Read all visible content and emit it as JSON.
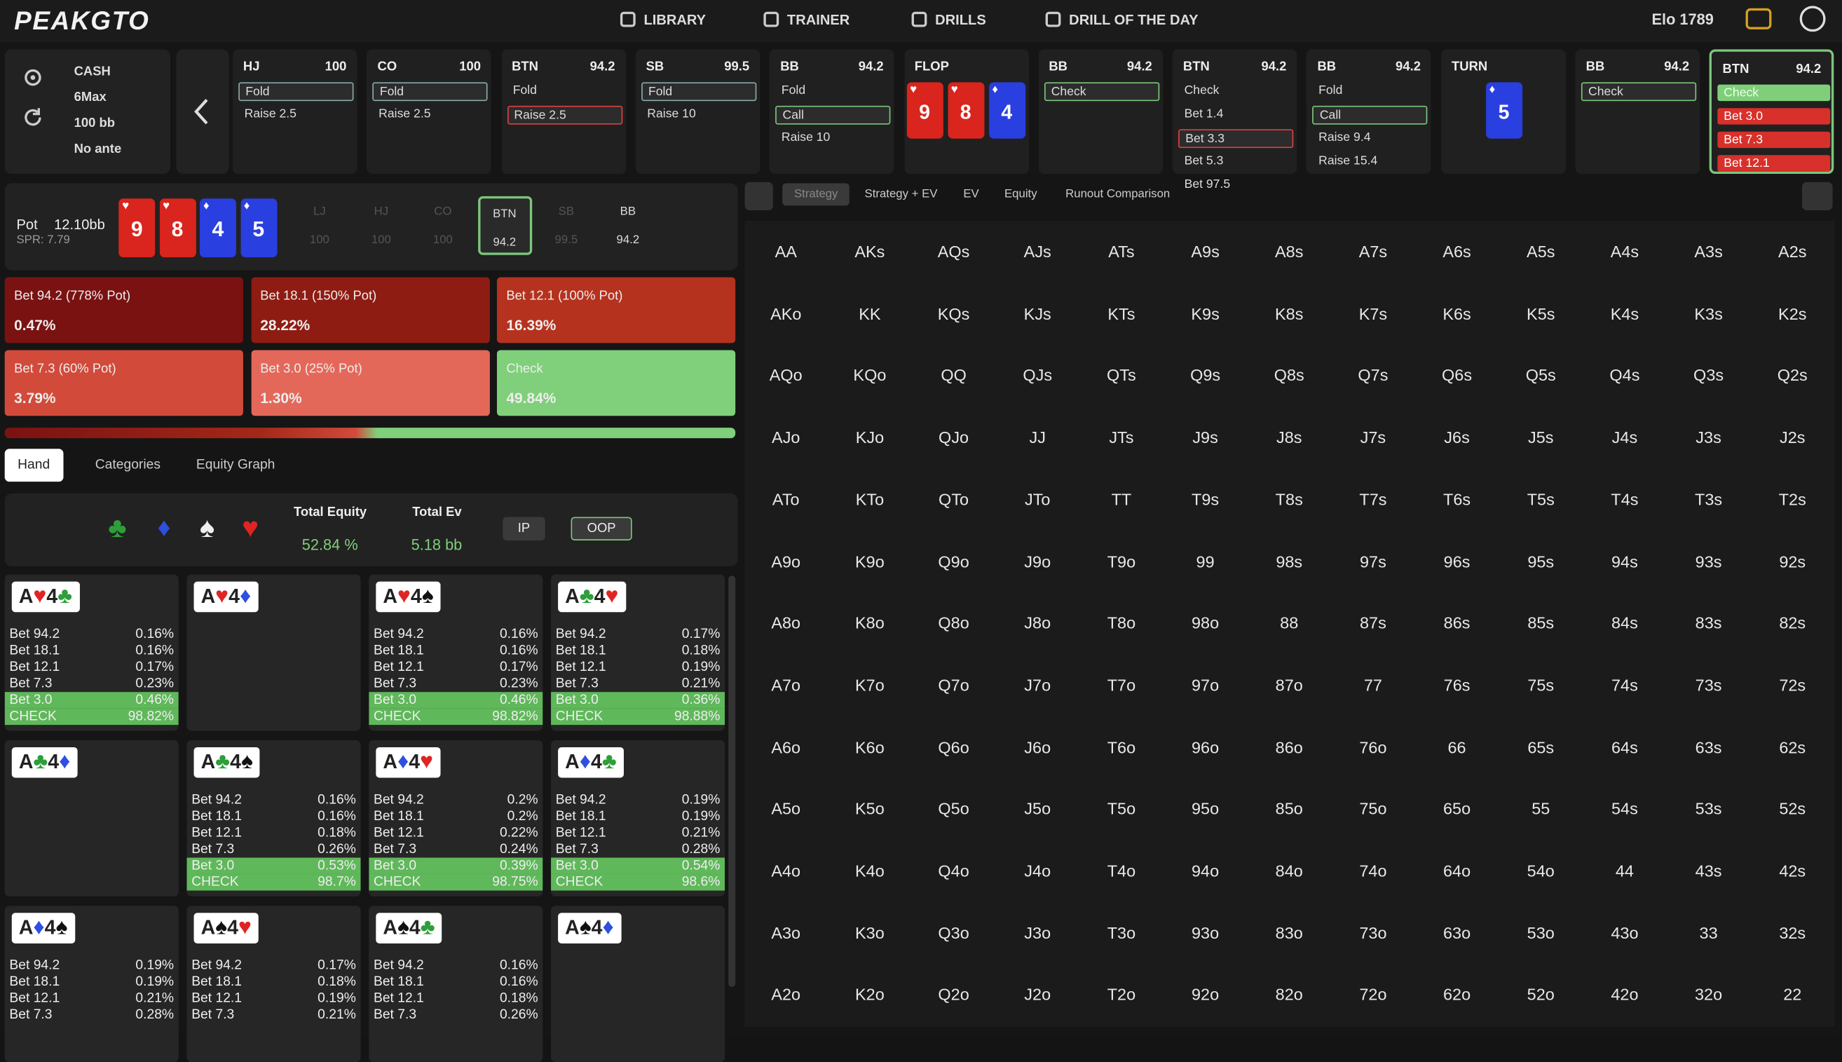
{
  "nav": {
    "logo": "PEAKGTO",
    "items": [
      "LIBRARY",
      "TRAINER",
      "DRILLS",
      "DRILL OF THE DAY"
    ],
    "elo": "Elo 1789"
  },
  "game": [
    "CASH",
    "6Max",
    "100 bb",
    "No ante"
  ],
  "columns": [
    {
      "player": "HJ",
      "stack": "100",
      "actions": [
        {
          "label": "Fold",
          "state": "box"
        },
        {
          "label": "Raise 2.5",
          "state": ""
        }
      ]
    },
    {
      "player": "CO",
      "stack": "100",
      "actions": [
        {
          "label": "Fold",
          "state": "box"
        },
        {
          "label": "Raise 2.5",
          "state": ""
        }
      ]
    },
    {
      "player": "BTN",
      "stack": "94.2",
      "actions": [
        {
          "label": "Fold",
          "state": ""
        },
        {
          "label": "Raise 2.5",
          "state": "box-red"
        }
      ]
    },
    {
      "player": "SB",
      "stack": "99.5",
      "actions": [
        {
          "label": "Fold",
          "state": "box"
        },
        {
          "label": "Raise 10",
          "state": ""
        }
      ]
    },
    {
      "player": "BB",
      "stack": "94.2",
      "actions": [
        {
          "label": "Fold",
          "state": ""
        },
        {
          "label": "Call",
          "state": "box-green"
        },
        {
          "label": "Raise 10",
          "state": ""
        }
      ]
    },
    {
      "player": "FLOP",
      "cards": [
        {
          "rank": "9",
          "suit": "♥",
          "color": "#d9251d"
        },
        {
          "rank": "8",
          "suit": "♥",
          "color": "#d9251d"
        },
        {
          "rank": "4",
          "suit": "♦",
          "color": "#2a3fe0"
        }
      ]
    },
    {
      "player": "BB",
      "stack": "94.2",
      "actions": [
        {
          "label": "Check",
          "state": "box-green"
        }
      ]
    },
    {
      "player": "BTN",
      "stack": "94.2",
      "actions": [
        {
          "label": "Check",
          "state": ""
        },
        {
          "label": "Bet 1.4",
          "state": ""
        },
        {
          "label": "Bet 3.3",
          "state": "box-red"
        },
        {
          "label": "Bet 5.3",
          "state": ""
        },
        {
          "label": "Bet 97.5",
          "state": ""
        }
      ]
    },
    {
      "player": "BB",
      "stack": "94.2",
      "actions": [
        {
          "label": "Fold",
          "state": ""
        },
        {
          "label": "Call",
          "state": "box-green"
        },
        {
          "label": "Raise 9.4",
          "state": ""
        },
        {
          "label": "Raise 15.4",
          "state": ""
        }
      ]
    },
    {
      "player": "TURN",
      "cards": [
        {
          "rank": "5",
          "suit": "♦",
          "color": "#2a3fe0"
        }
      ]
    },
    {
      "player": "BB",
      "stack": "94.2",
      "actions": [
        {
          "label": "Check",
          "state": "box-green"
        }
      ]
    },
    {
      "player": "BTN",
      "stack": "94.2",
      "active": true,
      "actions": [
        {
          "label": "Check",
          "state": "fill-green"
        },
        {
          "label": "Bet 3.0",
          "state": "fill-red"
        },
        {
          "label": "Bet 7.3",
          "state": "fill-red"
        },
        {
          "label": "Bet 12.1",
          "state": "fill-red"
        }
      ]
    }
  ],
  "pot": {
    "label": "Pot",
    "value": "12.10bb",
    "spr": "SPR: 7.79",
    "board": [
      {
        "rank": "9",
        "suit": "♥",
        "color": "#d9251d"
      },
      {
        "rank": "8",
        "suit": "♥",
        "color": "#d9251d"
      },
      {
        "rank": "4",
        "suit": "♦",
        "color": "#2a3fe0"
      },
      {
        "rank": "5",
        "suit": "♦",
        "color": "#2a3fe0"
      }
    ],
    "positions": [
      {
        "name": "LJ",
        "stack": "100"
      },
      {
        "name": "HJ",
        "stack": "100"
      },
      {
        "name": "CO",
        "stack": "100"
      },
      {
        "name": "BTN",
        "stack": "94.2",
        "active": true
      },
      {
        "name": "SB",
        "stack": "99.5"
      },
      {
        "name": "BB",
        "stack": "94.2",
        "active": true
      }
    ]
  },
  "strategy": [
    {
      "label": "Bet 94.2 (778% Pot)",
      "pct": "0.47%",
      "color": "#7a1212"
    },
    {
      "label": "Bet 18.1 (150% Pot)",
      "pct": "28.22%",
      "color": "#8e1c12"
    },
    {
      "label": "Bet 12.1 (100% Pot)",
      "pct": "16.39%",
      "color": "#b5321f"
    },
    {
      "label": "Bet 7.3 (60% Pot)",
      "pct": "3.79%",
      "color": "#d24a3a"
    },
    {
      "label": "Bet 3.0 (25% Pot)",
      "pct": "1.30%",
      "color": "#e4685a"
    },
    {
      "label": "Check",
      "pct": "49.84%",
      "color": "#80cf7b"
    }
  ],
  "tabs": [
    "Hand",
    "Categories",
    "Equity Graph"
  ],
  "equity": {
    "total_equity_label": "Total Equity",
    "total_equity": "52.84 %",
    "total_ev_label": "Total Ev",
    "total_ev": "5.18 bb",
    "ip": "IP",
    "oop": "OOP"
  },
  "combos": [
    {
      "cards": [
        {
          "rank": "A",
          "suit": "♥",
          "color": "#e02424"
        },
        {
          "rank": "4",
          "suit": "♣",
          "color": "#2e9e3a"
        }
      ],
      "rows": [
        [
          "Bet 94.2",
          "0.16%"
        ],
        [
          "Bet 18.1",
          "0.16%"
        ],
        [
          "Bet 12.1",
          "0.17%"
        ],
        [
          "Bet 7.3",
          "0.23%"
        ],
        [
          "Bet 3.0",
          "0.46%"
        ],
        [
          "CHECK",
          "98.82%"
        ]
      ]
    },
    {
      "cards": [
        {
          "rank": "A",
          "suit": "♥",
          "color": "#e02424"
        },
        {
          "rank": "4",
          "suit": "♦",
          "color": "#2f4fe0"
        }
      ],
      "rows": []
    },
    {
      "cards": [
        {
          "rank": "A",
          "suit": "♥",
          "color": "#e02424"
        },
        {
          "rank": "4",
          "suit": "♠",
          "color": "#111111"
        }
      ],
      "rows": [
        [
          "Bet 94.2",
          "0.16%"
        ],
        [
          "Bet 18.1",
          "0.16%"
        ],
        [
          "Bet 12.1",
          "0.17%"
        ],
        [
          "Bet 7.3",
          "0.23%"
        ],
        [
          "Bet 3.0",
          "0.46%"
        ],
        [
          "CHECK",
          "98.82%"
        ]
      ]
    },
    {
      "cards": [
        {
          "rank": "A",
          "suit": "♣",
          "color": "#2e9e3a"
        },
        {
          "rank": "4",
          "suit": "♥",
          "color": "#e02424"
        }
      ],
      "rows": [
        [
          "Bet 94.2",
          "0.17%"
        ],
        [
          "Bet 18.1",
          "0.18%"
        ],
        [
          "Bet 12.1",
          "0.19%"
        ],
        [
          "Bet 7.3",
          "0.21%"
        ],
        [
          "Bet 3.0",
          "0.36%"
        ],
        [
          "CHECK",
          "98.88%"
        ]
      ]
    },
    {
      "cards": [
        {
          "rank": "A",
          "suit": "♣",
          "color": "#2e9e3a"
        },
        {
          "rank": "4",
          "suit": "♦",
          "color": "#2f4fe0"
        }
      ],
      "rows": []
    },
    {
      "cards": [
        {
          "rank": "A",
          "suit": "♣",
          "color": "#2e9e3a"
        },
        {
          "rank": "4",
          "suit": "♠",
          "color": "#111111"
        }
      ],
      "rows": [
        [
          "Bet 94.2",
          "0.16%"
        ],
        [
          "Bet 18.1",
          "0.16%"
        ],
        [
          "Bet 12.1",
          "0.18%"
        ],
        [
          "Bet 7.3",
          "0.26%"
        ],
        [
          "Bet 3.0",
          "0.53%"
        ],
        [
          "CHECK",
          "98.7%"
        ]
      ]
    },
    {
      "cards": [
        {
          "rank": "A",
          "suit": "♦",
          "color": "#2f4fe0"
        },
        {
          "rank": "4",
          "suit": "♥",
          "color": "#e02424"
        }
      ],
      "rows": [
        [
          "Bet 94.2",
          "0.2%"
        ],
        [
          "Bet 18.1",
          "0.2%"
        ],
        [
          "Bet 12.1",
          "0.22%"
        ],
        [
          "Bet 7.3",
          "0.24%"
        ],
        [
          "Bet 3.0",
          "0.39%"
        ],
        [
          "CHECK",
          "98.75%"
        ]
      ]
    },
    {
      "cards": [
        {
          "rank": "A",
          "suit": "♦",
          "color": "#2f4fe0"
        },
        {
          "rank": "4",
          "suit": "♣",
          "color": "#2e9e3a"
        }
      ],
      "rows": [
        [
          "Bet 94.2",
          "0.19%"
        ],
        [
          "Bet 18.1",
          "0.19%"
        ],
        [
          "Bet 12.1",
          "0.21%"
        ],
        [
          "Bet 7.3",
          "0.28%"
        ],
        [
          "Bet 3.0",
          "0.54%"
        ],
        [
          "CHECK",
          "98.6%"
        ]
      ]
    },
    {
      "cards": [
        {
          "rank": "A",
          "suit": "♦",
          "color": "#2f4fe0"
        },
        {
          "rank": "4",
          "suit": "♠",
          "color": "#111111"
        }
      ],
      "rows": [
        [
          "Bet 94.2",
          "0.19%"
        ],
        [
          "Bet 18.1",
          "0.19%"
        ],
        [
          "Bet 12.1",
          "0.21%"
        ],
        [
          "Bet 7.3",
          "0.28%"
        ]
      ]
    },
    {
      "cards": [
        {
          "rank": "A",
          "suit": "♠",
          "color": "#111111"
        },
        {
          "rank": "4",
          "suit": "♥",
          "color": "#e02424"
        }
      ],
      "rows": [
        [
          "Bet 94.2",
          "0.17%"
        ],
        [
          "Bet 18.1",
          "0.18%"
        ],
        [
          "Bet 12.1",
          "0.19%"
        ],
        [
          "Bet 7.3",
          "0.21%"
        ]
      ]
    },
    {
      "cards": [
        {
          "rank": "A",
          "suit": "♠",
          "color": "#111111"
        },
        {
          "rank": "4",
          "suit": "♣",
          "color": "#2e9e3a"
        }
      ],
      "rows": [
        [
          "Bet 94.2",
          "0.16%"
        ],
        [
          "Bet 18.1",
          "0.16%"
        ],
        [
          "Bet 12.1",
          "0.18%"
        ],
        [
          "Bet 7.3",
          "0.26%"
        ]
      ]
    },
    {
      "cards": [
        {
          "rank": "A",
          "suit": "♠",
          "color": "#111111"
        },
        {
          "rank": "4",
          "suit": "♦",
          "color": "#2f4fe0"
        }
      ],
      "rows": []
    }
  ],
  "view_tabs": [
    "Strategy",
    "Strategy + EV",
    "EV",
    "Equity",
    "Runout Comparison"
  ],
  "hand_grid": {
    "rows": [
      [
        "AA",
        "AKs",
        "AQs",
        "AJs",
        "ATs",
        "A9s",
        "A8s",
        "A7s",
        "A6s",
        "A5s",
        "A4s",
        "A3s",
        "A2s"
      ],
      [
        "AKo",
        "KK",
        "KQs",
        "KJs",
        "KTs",
        "K9s",
        "K8s",
        "K7s",
        "K6s",
        "K5s",
        "K4s",
        "K3s",
        "K2s"
      ],
      [
        "AQo",
        "KQo",
        "QQ",
        "QJs",
        "QTs",
        "Q9s",
        "Q8s",
        "Q7s",
        "Q6s",
        "Q5s",
        "Q4s",
        "Q3s",
        "Q2s"
      ],
      [
        "AJo",
        "KJo",
        "QJo",
        "JJ",
        "JTs",
        "J9s",
        "J8s",
        "J7s",
        "J6s",
        "J5s",
        "J4s",
        "J3s",
        "J2s"
      ],
      [
        "ATo",
        "KTo",
        "QTo",
        "JTo",
        "TT",
        "T9s",
        "T8s",
        "T7s",
        "T6s",
        "T5s",
        "T4s",
        "T3s",
        "T2s"
      ],
      [
        "A9o",
        "K9o",
        "Q9o",
        "J9o",
        "T9o",
        "99",
        "98s",
        "97s",
        "96s",
        "95s",
        "94s",
        "93s",
        "92s"
      ],
      [
        "A8o",
        "K8o",
        "Q8o",
        "J8o",
        "T8o",
        "98o",
        "88",
        "87s",
        "86s",
        "85s",
        "84s",
        "83s",
        "82s"
      ],
      [
        "A7o",
        "K7o",
        "Q7o",
        "J7o",
        "T7o",
        "97o",
        "87o",
        "77",
        "76s",
        "75s",
        "74s",
        "73s",
        "72s"
      ],
      [
        "A6o",
        "K6o",
        "Q6o",
        "J6o",
        "T6o",
        "96o",
        "86o",
        "76o",
        "66",
        "65s",
        "64s",
        "63s",
        "62s"
      ],
      [
        "A5o",
        "K5o",
        "Q5o",
        "J5o",
        "T5o",
        "95o",
        "85o",
        "75o",
        "65o",
        "55",
        "54s",
        "53s",
        "52s"
      ],
      [
        "A4o",
        "K4o",
        "Q4o",
        "J4o",
        "T4o",
        "94o",
        "84o",
        "74o",
        "64o",
        "54o",
        "44",
        "43s",
        "42s"
      ],
      [
        "A3o",
        "K3o",
        "Q3o",
        "J3o",
        "T3o",
        "93o",
        "83o",
        "73o",
        "63o",
        "53o",
        "43o",
        "33",
        "32s"
      ],
      [
        "A2o",
        "K2o",
        "Q2o",
        "J2o",
        "T2o",
        "92o",
        "82o",
        "72o",
        "62o",
        "52o",
        "42o",
        "32o",
        "22"
      ]
    ]
  }
}
